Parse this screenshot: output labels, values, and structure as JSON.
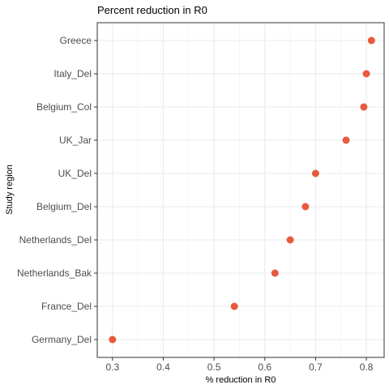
{
  "chart_data": {
    "type": "scatter",
    "title": "Percent reduction in R0",
    "xlabel": "% reduction in R0",
    "ylabel": "Study region",
    "xlim": [
      0.27,
      0.835
    ],
    "x_ticks": [
      0.3,
      0.4,
      0.5,
      0.6,
      0.7,
      0.8
    ],
    "x_tick_labels": [
      "0.3",
      "0.4",
      "0.5",
      "0.6",
      "0.7",
      "0.8"
    ],
    "categories": [
      "Greece",
      "Italy_Del",
      "Belgium_Col",
      "UK_Jar",
      "UK_Del",
      "Belgium_Del",
      "Netherlands_Del",
      "Netherlands_Bak",
      "France_Del",
      "Germany_Del"
    ],
    "values": [
      0.81,
      0.8,
      0.795,
      0.76,
      0.7,
      0.68,
      0.65,
      0.62,
      0.54,
      0.3
    ],
    "point_color": "#E8593D",
    "grid": true,
    "panel_border": true,
    "legend": "none"
  }
}
